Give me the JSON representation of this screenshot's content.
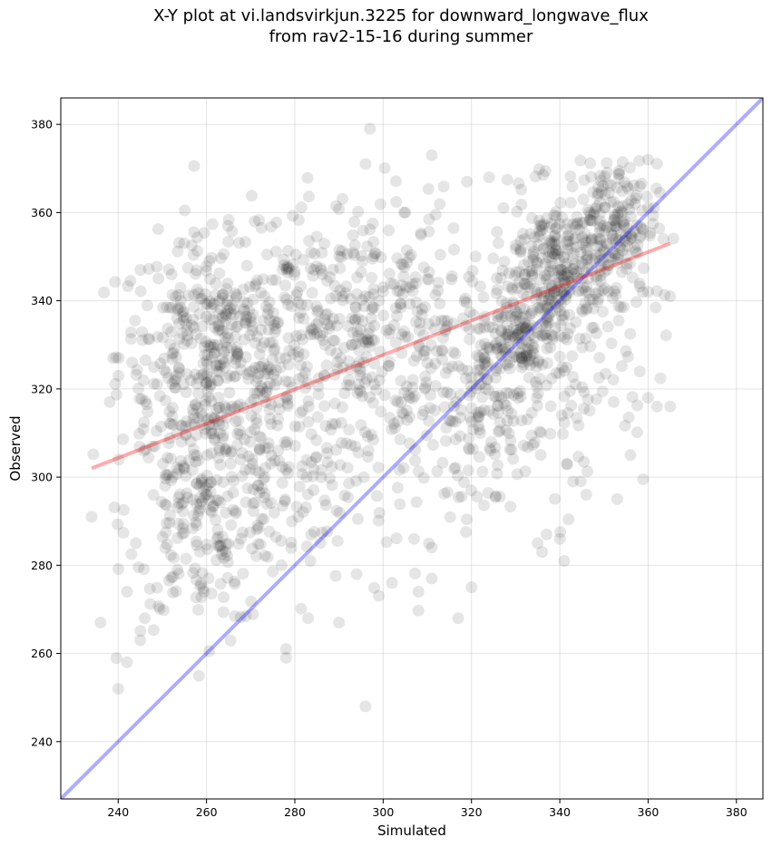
{
  "chart_data": {
    "type": "scatter",
    "title": "X-Y plot at vi.landsvirkjun.3225 for downward_longwave_flux",
    "subtitle": "from rav2-15-16 during summer",
    "xlabel": "Simulated",
    "ylabel": "Observed",
    "xlim": [
      227,
      386
    ],
    "ylim": [
      227,
      386
    ],
    "xticks": [
      240,
      260,
      280,
      300,
      320,
      340,
      360,
      380
    ],
    "yticks": [
      240,
      260,
      280,
      300,
      320,
      340,
      360,
      380
    ],
    "grid": true,
    "point_color": "#000000",
    "point_alpha": 0.1,
    "one_to_one_line": {
      "color": "#0000ff",
      "from": [
        227,
        227
      ],
      "to": [
        386,
        386
      ]
    },
    "regression_line": {
      "color": "#ff0000",
      "from": [
        234,
        302
      ],
      "to": [
        365,
        353
      ]
    },
    "outliers": [
      [
        234,
        291
      ],
      [
        236,
        267
      ],
      [
        240,
        252
      ],
      [
        242,
        258
      ],
      [
        242,
        274
      ],
      [
        244,
        285
      ],
      [
        245,
        263
      ],
      [
        246,
        268
      ],
      [
        278,
        259
      ],
      [
        278,
        261
      ],
      [
        283,
        268
      ],
      [
        290,
        267
      ],
      [
        296,
        248
      ],
      [
        302,
        276
      ],
      [
        308,
        274
      ],
      [
        311,
        277
      ],
      [
        317,
        268
      ],
      [
        320,
        275
      ],
      [
        335,
        285
      ],
      [
        336,
        283
      ],
      [
        337,
        287
      ],
      [
        340,
        286
      ],
      [
        341,
        281
      ],
      [
        343,
        299
      ],
      [
        346,
        296
      ],
      [
        353,
        295
      ],
      [
        356,
        305
      ],
      [
        360,
        318
      ],
      [
        362,
        316
      ],
      [
        365,
        316
      ],
      [
        365,
        341
      ],
      [
        360,
        372
      ],
      [
        297,
        379
      ],
      [
        296,
        371
      ],
      [
        311,
        373
      ],
      [
        319,
        367
      ],
      [
        324,
        368
      ],
      [
        357,
        362
      ],
      [
        294,
        278
      ],
      [
        307,
        286
      ],
      [
        311,
        284
      ]
    ],
    "clusters": [
      {
        "mx": 262,
        "my": 328,
        "sx": 11,
        "sy": 13,
        "n": 430
      },
      {
        "mx": 260,
        "my": 292,
        "sx": 9,
        "sy": 13,
        "n": 240
      },
      {
        "mx": 292,
        "my": 335,
        "sx": 13,
        "sy": 15,
        "n": 330
      },
      {
        "mx": 313,
        "my": 320,
        "sx": 11,
        "sy": 16,
        "n": 150
      },
      {
        "mx": 340,
        "my": 345,
        "sx": 8,
        "sy": 9,
        "n": 330
      },
      {
        "mx": 350,
        "my": 357,
        "sx": 6,
        "sy": 7,
        "n": 170
      },
      {
        "mx": 330,
        "my": 331,
        "sx": 4,
        "sy": 5,
        "n": 110
      },
      {
        "mx": 325,
        "my": 312,
        "sx": 6,
        "sy": 10,
        "n": 90
      },
      {
        "mx": 345,
        "my": 320,
        "sx": 8,
        "sy": 12,
        "n": 60
      },
      {
        "mx": 280,
        "my": 302,
        "sx": 9,
        "sy": 11,
        "n": 110
      }
    ]
  }
}
